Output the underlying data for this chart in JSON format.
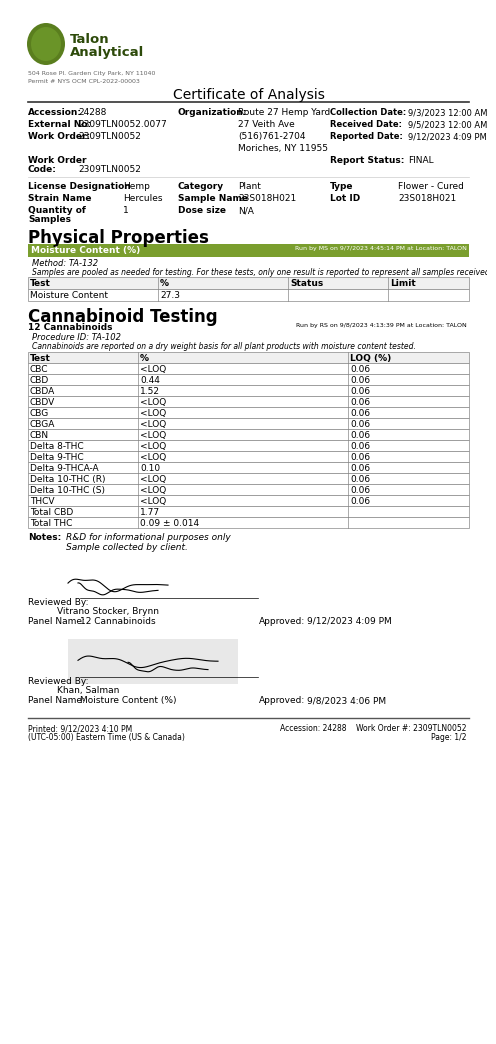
{
  "title": "Certificate of Analysis",
  "logo_address_line1": "504 Rose Pl. Garden City Park, NY 11040",
  "logo_address_line2": "Permit # NYS OCM CPL-2022-00003",
  "accession": "24288",
  "external_no": "2309TLN0052.0077",
  "work_order": "2309TLN0052",
  "work_order_code": "2309TLN0052",
  "organization": "Route 27 Hemp Yard",
  "org_addr1": "27 Veith Ave",
  "org_addr2": "(516)761-2704",
  "org_addr3": "Moriches, NY 11955",
  "collection_date": "9/3/2023 12:00 AM",
  "received_date": "9/5/2023 12:00 AM",
  "reported_date": "9/12/2023 4:09 PM",
  "report_status": "FINAL",
  "license_designation": "Hemp",
  "category": "Plant",
  "type": "Flower - Cured",
  "strain_name": "Hercules",
  "sample_name": "23S018H021",
  "lot_id": "23S018H021",
  "quantity_of_samples": "1",
  "dose_size": "N/A",
  "physical_section": "Physical Properties",
  "moisture_header": "Moisture Content (%)",
  "moisture_runby": "Run by MS on 9/7/2023 4:45:14 PM at Location: TALON",
  "moisture_method": "Method: TA-132",
  "moisture_note": "Samples are pooled as needed for testing. For these tests, only one result is reported to represent all samples received.",
  "moisture_table_headers": [
    "Test",
    "%",
    "Status",
    "Limit"
  ],
  "moisture_table_data": [
    [
      "Moisture Content",
      "27.3",
      "",
      ""
    ]
  ],
  "cannabinoid_section": "Cannabinoid Testing",
  "cannabinoid_count": "12 Cannabinoids",
  "cannabinoid_runby": "Run by RS on 9/8/2023 4:13:39 PM at Location: TALON",
  "cannabinoid_procedure": "Procedure ID: TA-102",
  "cannabinoid_note": "Cannabinoids are reported on a dry weight basis for all plant products with moisture content tested.",
  "cannabinoid_headers": [
    "Test",
    "%",
    "LOQ (%)"
  ],
  "cannabinoid_data": [
    [
      "CBC",
      "<LOQ",
      "0.06"
    ],
    [
      "CBD",
      "0.44",
      "0.06"
    ],
    [
      "CBDA",
      "1.52",
      "0.06"
    ],
    [
      "CBDV",
      "<LOQ",
      "0.06"
    ],
    [
      "CBG",
      "<LOQ",
      "0.06"
    ],
    [
      "CBGA",
      "<LOQ",
      "0.06"
    ],
    [
      "CBN",
      "<LOQ",
      "0.06"
    ],
    [
      "Delta 8-THC",
      "<LOQ",
      "0.06"
    ],
    [
      "Delta 9-THC",
      "<LOQ",
      "0.06"
    ],
    [
      "Delta 9-THCA-A",
      "0.10",
      "0.06"
    ],
    [
      "Delta 10-THC (R)",
      "<LOQ",
      "0.06"
    ],
    [
      "Delta 10-THC (S)",
      "<LOQ",
      "0.06"
    ],
    [
      "THCV",
      "<LOQ",
      "0.06"
    ],
    [
      "Total CBD",
      "1.77",
      ""
    ],
    [
      "Total THC",
      "0.09 ± 0.014",
      ""
    ]
  ],
  "notes_line1": "R&D for informational purposes only",
  "notes_line2": "Sample collected by client.",
  "reviewer1_name": "Vitrano Stocker, Brynn",
  "reviewer1_panel": "12 Cannabinoids",
  "reviewer1_approved": "9/12/2023 4:09 PM",
  "reviewer2_name": "Khan, Salman",
  "reviewer2_panel": "Moisture Content (%)",
  "reviewer2_approved": "9/8/2023 4:06 PM",
  "footer_printed": "Printed: 9/12/2023 4:10 PM",
  "footer_timezone": "(UTC-05:00) Eastern Time (US & Canada)",
  "footer_accession": "Accession: 24288",
  "footer_workorder": "Work Order #: 2309TLN0052",
  "footer_page": "Page: 1/2",
  "moisture_bar_color": "#7a9e2e",
  "moisture_bar_color2": "#8aaf2e",
  "logo_green_dark": "#4a6e1a",
  "logo_green_mid": "#6a8e2a",
  "background_color": "#ffffff"
}
